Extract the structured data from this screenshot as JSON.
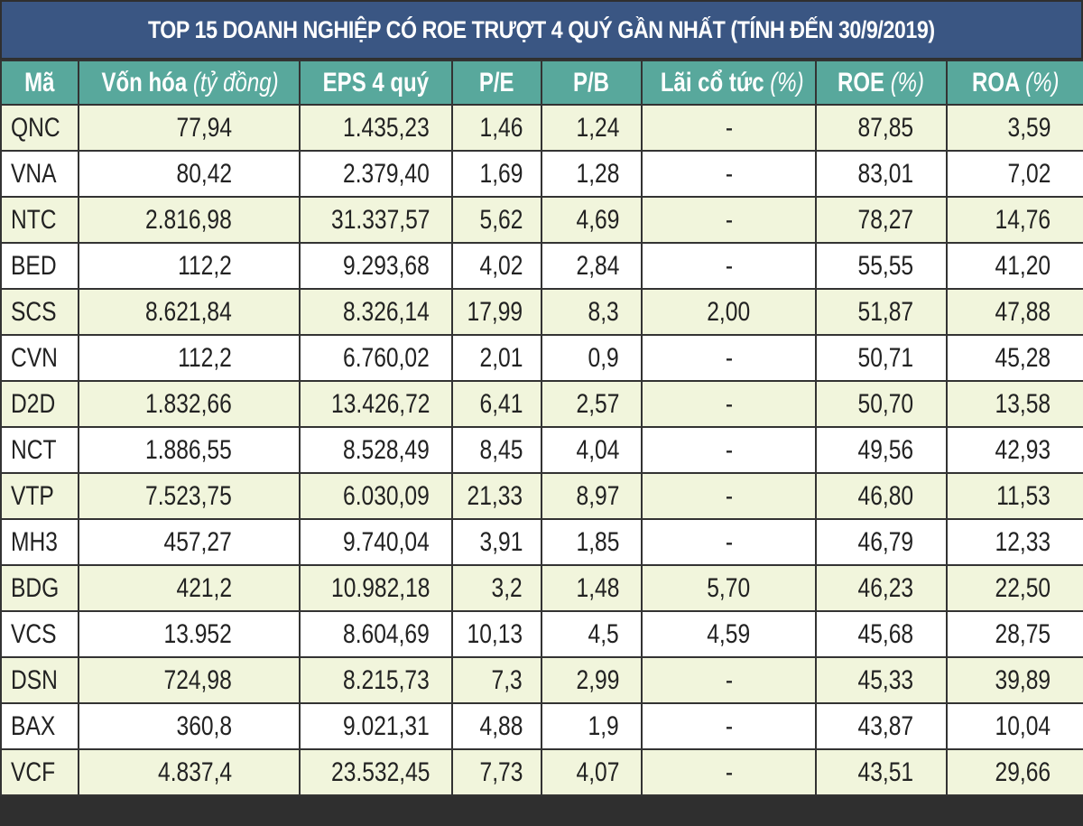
{
  "title": "TOP 15 DOANH NGHIỆP CÓ ROE TRƯỢT 4 QUÝ GẦN NHẤT (TÍNH ĐẾN 30/9/2019)",
  "colors": {
    "title_bg": "#3a5683",
    "header_bg": "#58a89c",
    "row_odd_bg": "#f1f5dc",
    "row_even_bg": "#ffffff",
    "border": "#333333"
  },
  "columns": [
    {
      "label": "Mã",
      "unit": ""
    },
    {
      "label": "Vốn hóa ",
      "unit": "(tỷ đồng)"
    },
    {
      "label": "EPS 4 quý",
      "unit": ""
    },
    {
      "label": "P/E",
      "unit": ""
    },
    {
      "label": "P/B",
      "unit": ""
    },
    {
      "label": "Lãi cổ tức ",
      "unit": "(%)"
    },
    {
      "label": "ROE ",
      "unit": "(%)"
    },
    {
      "label": "ROA ",
      "unit": "(%)"
    }
  ],
  "rows": [
    [
      "QNC",
      "77,94",
      "1.435,23",
      "1,46",
      "1,24",
      "-",
      "87,85",
      "3,59"
    ],
    [
      "VNA",
      "80,42",
      "2.379,40",
      "1,69",
      "1,28",
      "-",
      "83,01",
      "7,02"
    ],
    [
      "NTC",
      "2.816,98",
      "31.337,57",
      "5,62",
      "4,69",
      "-",
      "78,27",
      "14,76"
    ],
    [
      "BED",
      "112,2",
      "9.293,68",
      "4,02",
      "2,84",
      "-",
      "55,55",
      "41,20"
    ],
    [
      "SCS",
      "8.621,84",
      "8.326,14",
      "17,99",
      "8,3",
      "2,00",
      "51,87",
      "47,88"
    ],
    [
      "CVN",
      "112,2",
      "6.760,02",
      "2,01",
      "0,9",
      "-",
      "50,71",
      "45,28"
    ],
    [
      "D2D",
      "1.832,66",
      "13.426,72",
      "6,41",
      "2,57",
      "-",
      "50,70",
      "13,58"
    ],
    [
      "NCT",
      "1.886,55",
      "8.528,49",
      "8,45",
      "4,04",
      "-",
      "49,56",
      "42,93"
    ],
    [
      "VTP",
      "7.523,75",
      "6.030,09",
      "21,33",
      "8,97",
      "-",
      "46,80",
      "11,53"
    ],
    [
      "MH3",
      "457,27",
      "9.740,04",
      "3,91",
      "1,85",
      "-",
      "46,79",
      "12,33"
    ],
    [
      "BDG",
      "421,2",
      "10.982,18",
      "3,2",
      "1,48",
      "5,70",
      "46,23",
      "22,50"
    ],
    [
      "VCS",
      "13.952",
      "8.604,69",
      "10,13",
      "4,5",
      "4,59",
      "45,68",
      "28,75"
    ],
    [
      "DSN",
      "724,98",
      "8.215,73",
      "7,3",
      "2,99",
      "-",
      "45,33",
      "39,89"
    ],
    [
      "BAX",
      "360,8",
      "9.021,31",
      "4,88",
      "1,9",
      "-",
      "43,87",
      "10,04"
    ],
    [
      "VCF",
      "4.837,4",
      "23.532,45",
      "7,73",
      "4,07",
      "-",
      "43,51",
      "29,66"
    ]
  ]
}
